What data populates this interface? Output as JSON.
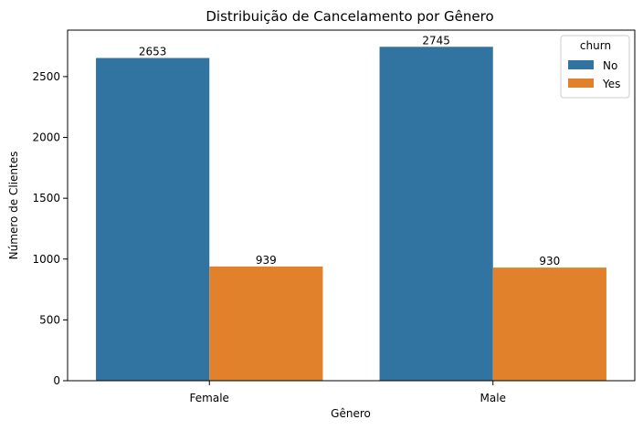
{
  "chart_data": {
    "type": "bar",
    "title": "Distribuição de Cancelamento por Gênero",
    "xlabel": "Gênero",
    "ylabel": "Número de Clientes",
    "categories": [
      "Female",
      "Male"
    ],
    "series": [
      {
        "name": "No",
        "values": [
          2653,
          2745
        ],
        "color": "#3274a1"
      },
      {
        "name": "Yes",
        "values": [
          939,
          930
        ],
        "color": "#e1812c"
      }
    ],
    "data_labels": [
      [
        "2653",
        "2745"
      ],
      [
        "939",
        "930"
      ]
    ],
    "ylim": [
      0,
      2882
    ],
    "yticks": [
      0,
      500,
      1000,
      1500,
      2000,
      2500
    ],
    "ytick_labels": [
      "0",
      "500",
      "1000",
      "1500",
      "2000",
      "2500"
    ],
    "legend": {
      "title": "churn",
      "position": "top-right"
    },
    "grid": false
  }
}
